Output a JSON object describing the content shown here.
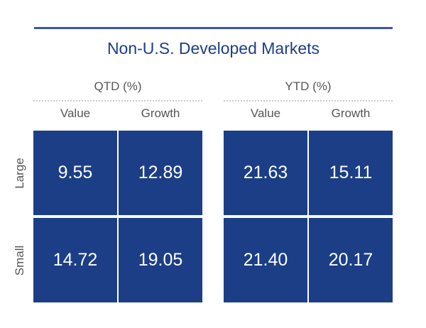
{
  "chart_data": {
    "type": "heatmap",
    "title": "Non-U.S. Developed Markets",
    "panels": [
      {
        "label": "QTD (%)",
        "columns": [
          "Value",
          "Growth"
        ],
        "rows": [
          "Large",
          "Small"
        ],
        "values": [
          [
            9.55,
            12.89
          ],
          [
            14.72,
            19.05
          ]
        ],
        "display": [
          [
            "9.55",
            "12.89"
          ],
          [
            "14.72",
            "19.05"
          ]
        ]
      },
      {
        "label": "YTD (%)",
        "columns": [
          "Value",
          "Growth"
        ],
        "rows": [
          "Large",
          "Small"
        ],
        "values": [
          [
            21.63,
            15.11
          ],
          [
            21.4,
            20.17
          ]
        ],
        "display": [
          [
            "21.63",
            "15.11"
          ],
          [
            "21.40",
            "20.17"
          ]
        ]
      }
    ],
    "colors": {
      "cell": "#1b3e87",
      "title": "#1d3f86",
      "rule": "#3a5a9a"
    }
  }
}
